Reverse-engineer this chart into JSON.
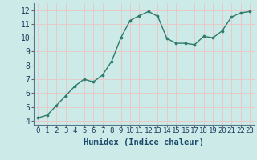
{
  "x": [
    0,
    1,
    2,
    3,
    4,
    5,
    6,
    7,
    8,
    9,
    10,
    11,
    12,
    13,
    14,
    15,
    16,
    17,
    18,
    19,
    20,
    21,
    22,
    23
  ],
  "y": [
    4.2,
    4.4,
    5.1,
    5.8,
    6.5,
    7.0,
    6.8,
    7.3,
    8.3,
    10.0,
    11.25,
    11.6,
    11.9,
    11.55,
    9.95,
    9.6,
    9.6,
    9.5,
    10.1,
    10.0,
    10.5,
    11.5,
    11.8,
    11.9
  ],
  "line_color": "#2e7b6b",
  "marker": "o",
  "marker_size": 2.2,
  "line_width": 1.0,
  "background_color": "#cceae8",
  "grid_color": "#e8c8c8",
  "xlabel": "Humidex (Indice chaleur)",
  "xlabel_fontsize": 7.5,
  "xlabel_color": "#1a4a6a",
  "ylabel_ticks": [
    4,
    5,
    6,
    7,
    8,
    9,
    10,
    11,
    12
  ],
  "xlim": [
    -0.5,
    23.5
  ],
  "ylim": [
    3.7,
    12.5
  ],
  "xtick_labels": [
    "0",
    "1",
    "2",
    "3",
    "4",
    "5",
    "6",
    "7",
    "8",
    "9",
    "10",
    "11",
    "12",
    "13",
    "14",
    "15",
    "16",
    "17",
    "18",
    "19",
    "20",
    "21",
    "22",
    "23"
  ],
  "tick_fontsize": 6.5,
  "ytick_fontsize": 7
}
